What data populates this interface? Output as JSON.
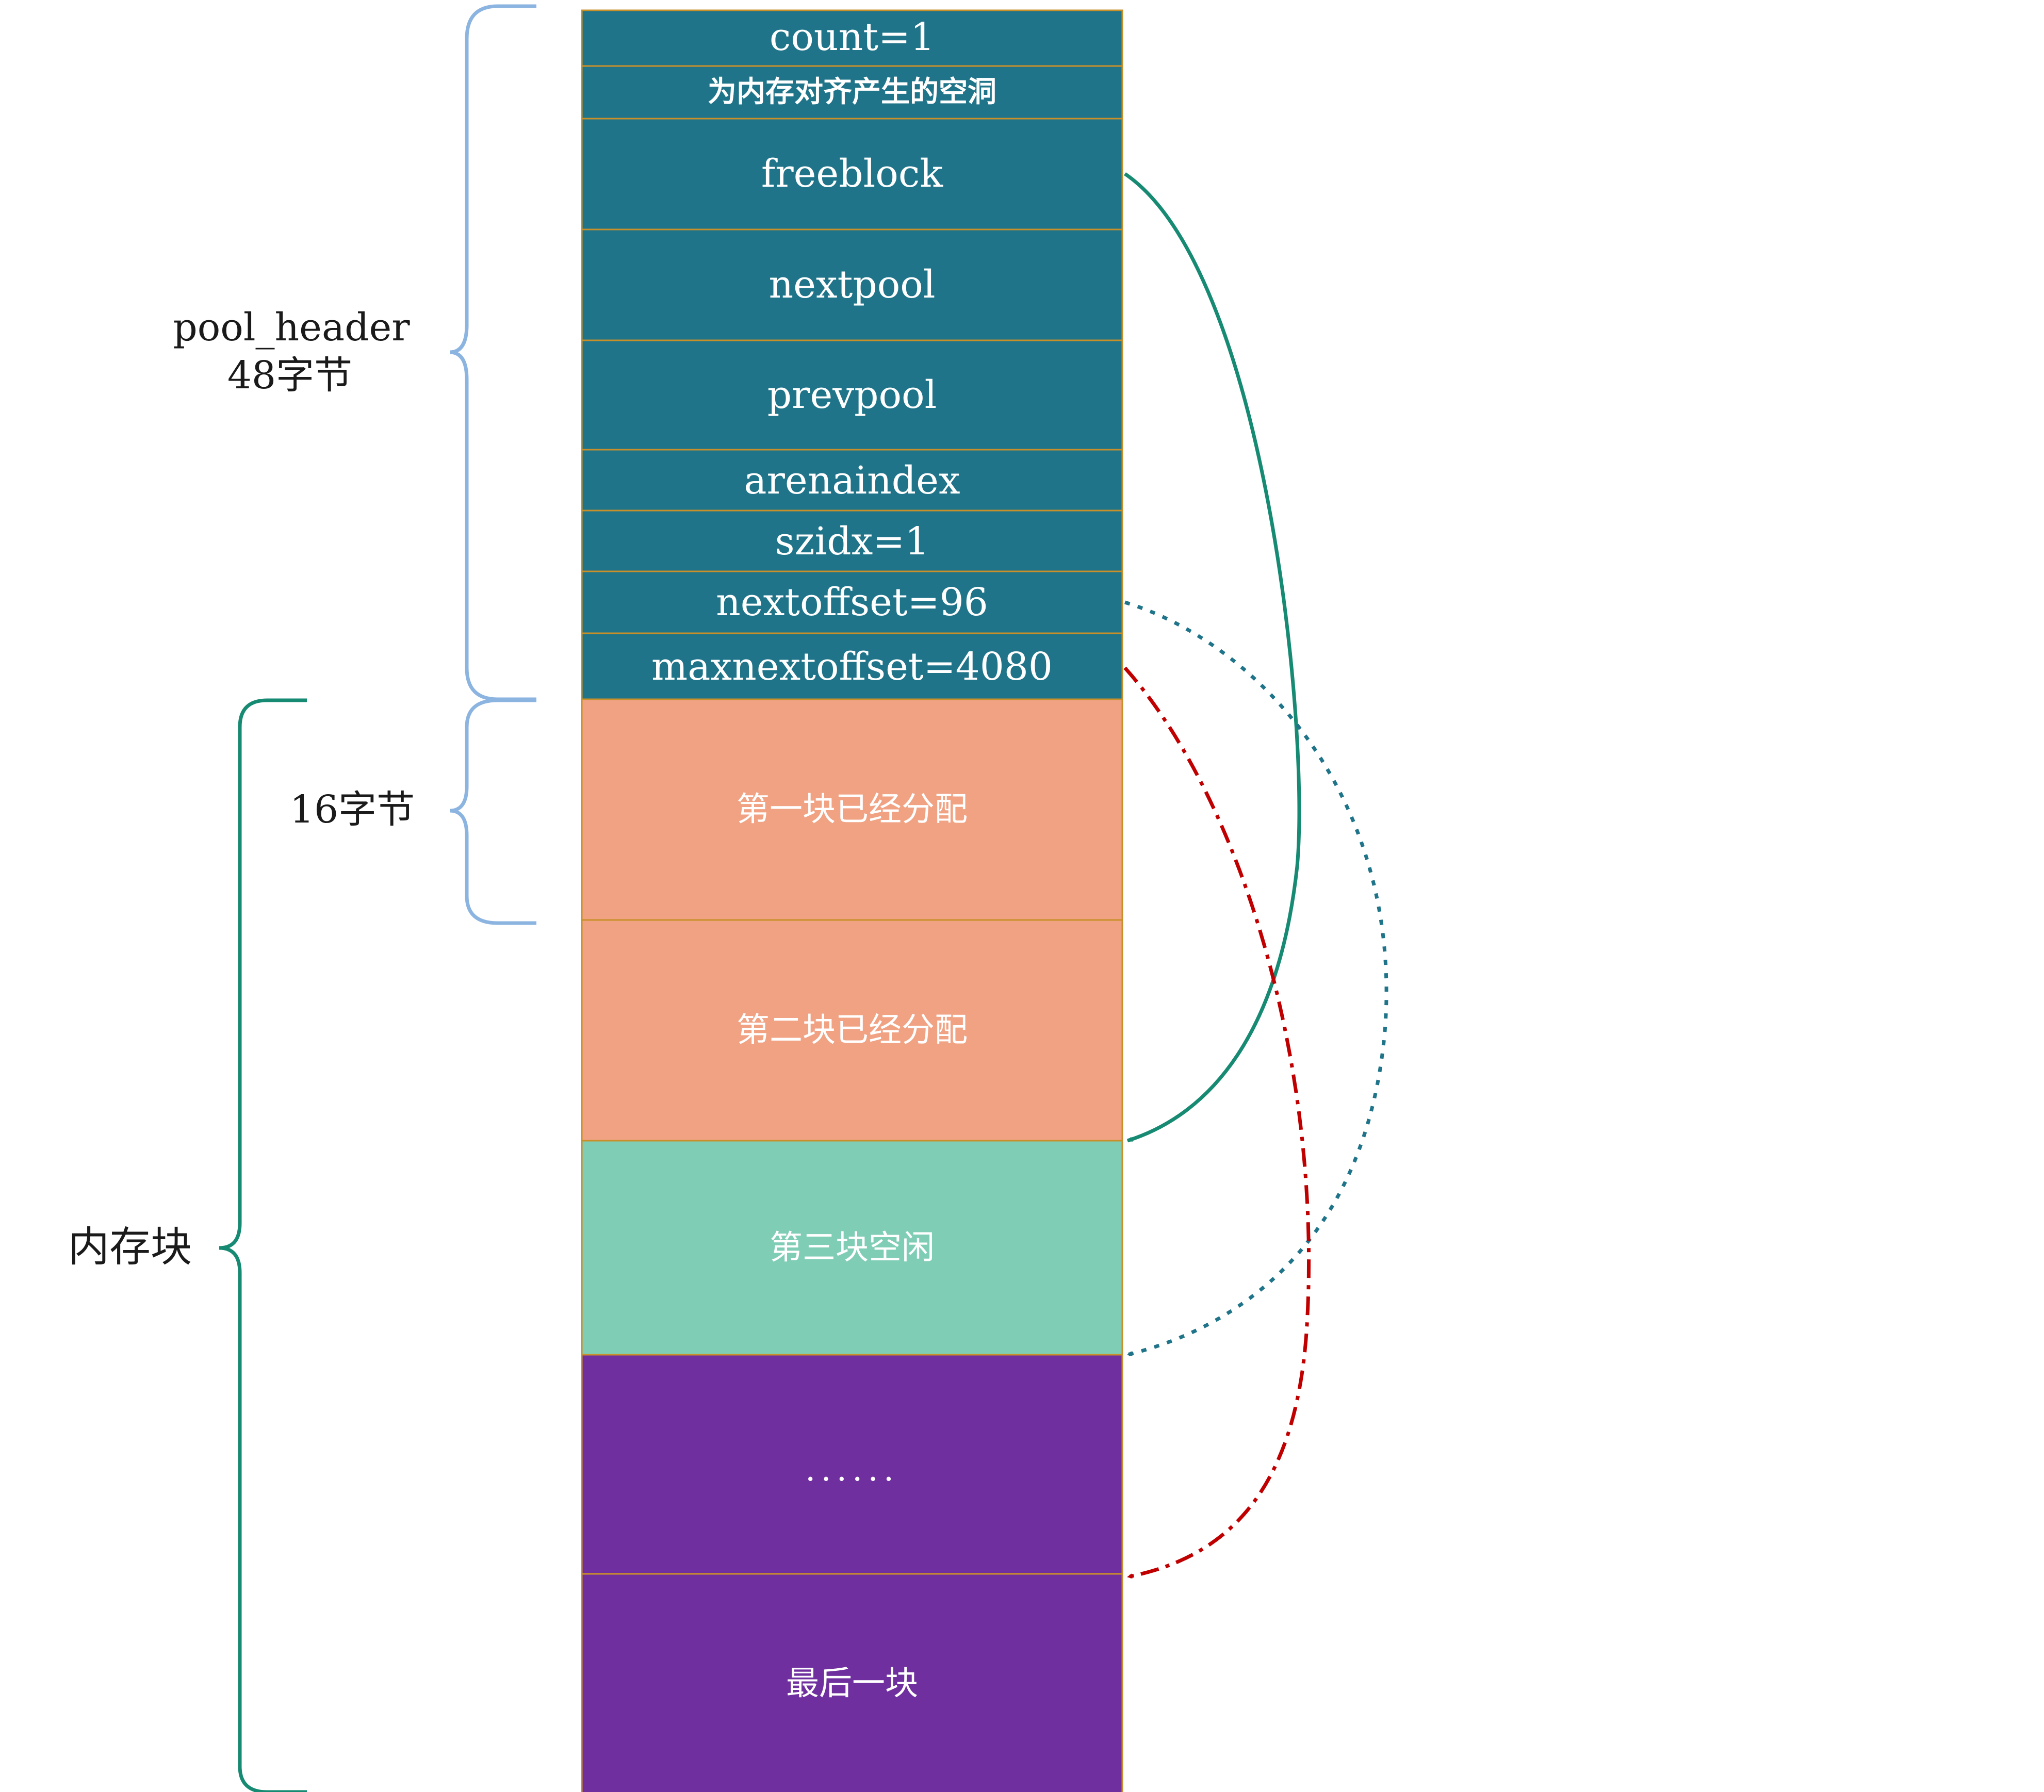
{
  "header_fields": [
    {
      "label": "count=1",
      "color": "#1f7489"
    },
    {
      "label": "为内存对齐产生的空洞",
      "color": "#1f7489"
    },
    {
      "label": "freeblock",
      "color": "#1f7489"
    },
    {
      "label": "nextpool",
      "color": "#1f7489"
    },
    {
      "label": "prevpool",
      "color": "#1f7489"
    },
    {
      "label": "arenaindex",
      "color": "#1f7489"
    },
    {
      "label": "szidx=1",
      "color": "#1f7489"
    },
    {
      "label": "nextoffset=96",
      "color": "#1f7489"
    },
    {
      "label": "maxnextoffset=4080",
      "color": "#1f7489"
    }
  ],
  "memory_blocks": [
    {
      "label": "第一块已经分配",
      "color": "#f0a283"
    },
    {
      "label": "第二块已经分配",
      "color": "#f0a283"
    },
    {
      "label": "第三块空闲",
      "color": "#80cdb6"
    },
    {
      "label": "......",
      "color": "#6f2f9e"
    },
    {
      "label": "最后一块",
      "color": "#6f2f9e"
    }
  ],
  "brackets": {
    "pool_header": {
      "line1": "pool_header",
      "line2": "48字节",
      "color": "#8cb4e0"
    },
    "block_size": {
      "label": "16字节",
      "color": "#8cb4e0"
    },
    "memory_area": {
      "label": "内存块",
      "color": "#168a72"
    }
  },
  "arrows": {
    "freeblock": {
      "from": "freeblock",
      "to": "第三块空闲",
      "style": "solid",
      "color": "#168a72"
    },
    "nextoffset": {
      "from": "nextoffset=96",
      "to": "第三块空闲",
      "style": "dotted",
      "color": "#1f7489"
    },
    "maxnextoffset": {
      "from": "maxnextoffset=4080",
      "to": "最后一块",
      "style": "dash-dot",
      "color": "#c00000"
    }
  },
  "colors": {
    "cell_border": "#c9902a"
  }
}
